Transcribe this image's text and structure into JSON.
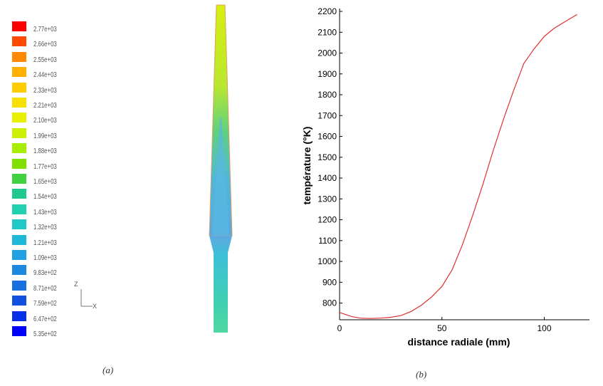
{
  "panel_a": {
    "caption": "(a)",
    "colorbar": {
      "labels": [
        "2.77e+03",
        "2.66e+03",
        "2.55e+03",
        "2.44e+03",
        "2.33e+03",
        "2.21e+03",
        "2.10e+03",
        "1.99e+03",
        "1.88e+03",
        "1.77e+03",
        "1.65e+03",
        "1.54e+03",
        "1.43e+03",
        "1.32e+03",
        "1.21e+03",
        "1.09e+03",
        "9.83e+02",
        "8.71e+02",
        "7.59e+02",
        "6.47e+02",
        "5.35e+02"
      ],
      "colors": [
        "#ff0000",
        "#ff4a00",
        "#ff8a00",
        "#ffb000",
        "#ffcc00",
        "#f5e000",
        "#e8f000",
        "#ccf000",
        "#a8ec00",
        "#80e000",
        "#40d040",
        "#20c890",
        "#20d0b0",
        "#20c8c8",
        "#20b8d8",
        "#20a0e0",
        "#1c88e0",
        "#1870e0",
        "#1050e0",
        "#0830e8",
        "#0000ff"
      ]
    },
    "axis_triad": {
      "z": "Z",
      "x": "X"
    }
  },
  "panel_b": {
    "caption": "(b)"
  },
  "chart_data": {
    "type": "line",
    "title": "",
    "xlabel": "distance radiale (mm)",
    "ylabel": "température (°K)",
    "xlim": [
      0,
      120
    ],
    "ylim": [
      720,
      2200
    ],
    "xticks": [
      0,
      50,
      100
    ],
    "yticks": [
      800,
      900,
      1000,
      1100,
      1200,
      1300,
      1400,
      1500,
      1600,
      1700,
      1800,
      1900,
      2000,
      2100,
      2200
    ],
    "grid": false,
    "color": "#e03030",
    "series": [
      {
        "x": [
          0,
          3,
          6,
          10,
          15,
          20,
          25,
          30,
          35,
          40,
          45,
          50,
          55,
          60,
          65,
          70,
          75,
          80,
          85,
          90,
          95,
          100,
          105,
          110,
          116
        ],
        "y": [
          755,
          745,
          735,
          728,
          726,
          728,
          732,
          740,
          760,
          790,
          830,
          880,
          960,
          1080,
          1220,
          1370,
          1530,
          1680,
          1820,
          1950,
          2020,
          2080,
          2120,
          2150,
          2185
        ]
      }
    ]
  }
}
